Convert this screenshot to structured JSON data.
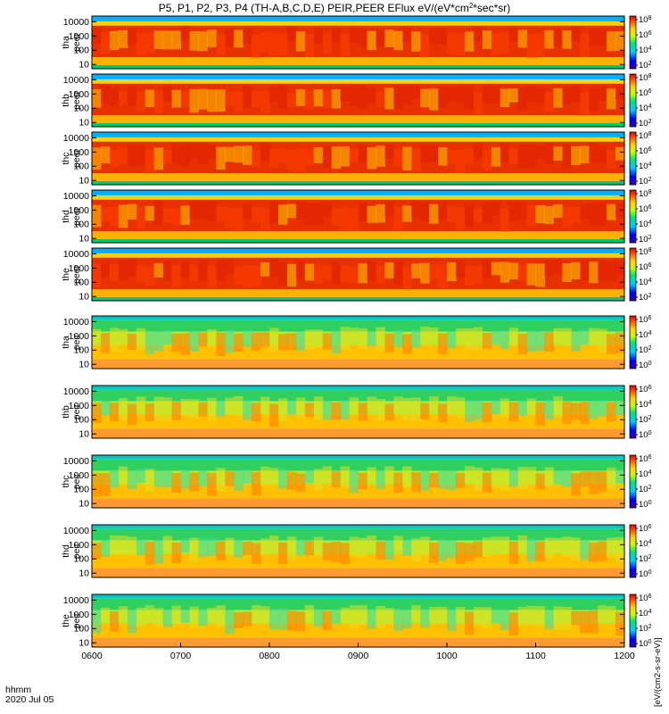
{
  "chart_data": {
    "type": "heatmap",
    "title": "P5, P1, P2, P3, P4 (TH-A,B,C,D,E) PEIR,PEER EFlux eV/(eV*cm",
    "title_sup": "2",
    "title_tail": "*sec*sr)",
    "x_ticks": [
      "0600",
      "0700",
      "0800",
      "0900",
      "1000",
      "1100",
      "1200"
    ],
    "x_range": [
      "06:00",
      "12:00"
    ],
    "time_label": "hhmm",
    "date_label": "2020 Jul 05",
    "y_scale": "log",
    "y_range_eV": [
      5,
      25000
    ],
    "y_ticks": [
      "10000",
      "1000",
      "100",
      "10"
    ],
    "colorbar_scale": "log",
    "colorbar_ticks": [
      "10^6",
      "10^4",
      "10^2",
      "10^0"
    ],
    "colorbar_ticks_upper": [
      "10^8",
      "10^6",
      "10^4",
      "10^2"
    ],
    "colorbar_unit": "[eV/(cm2-s-sr-eV)]",
    "colors": {
      "high": "#d40000",
      "mid": "#ffd400",
      "low": "#00d4ff",
      "min": "#0000aa"
    },
    "panels": [
      {
        "probe": "tha",
        "species": "peer",
        "label1": "tha",
        "label2": "peer"
      },
      {
        "probe": "thb",
        "species": "peer",
        "label1": "thb",
        "label2": "peer"
      },
      {
        "probe": "thc",
        "species": "peer",
        "label1": "thc",
        "label2": "peer"
      },
      {
        "probe": "thd",
        "species": "peer",
        "label1": "thd",
        "label2": "peer"
      },
      {
        "probe": "the",
        "species": "peer",
        "label1": "the",
        "label2": "peer"
      },
      {
        "probe": "tha",
        "species": "peir",
        "label1": "tha",
        "label2": "peir"
      },
      {
        "probe": "thb",
        "species": "peir",
        "label1": "thb",
        "label2": "peir"
      },
      {
        "probe": "thc",
        "species": "peir",
        "label1": "thc",
        "label2": "peir"
      },
      {
        "probe": "thd",
        "species": "peir",
        "label1": "thd",
        "label2": "peir"
      },
      {
        "probe": "the",
        "species": "peir",
        "label1": "the",
        "label2": "peir"
      }
    ]
  }
}
